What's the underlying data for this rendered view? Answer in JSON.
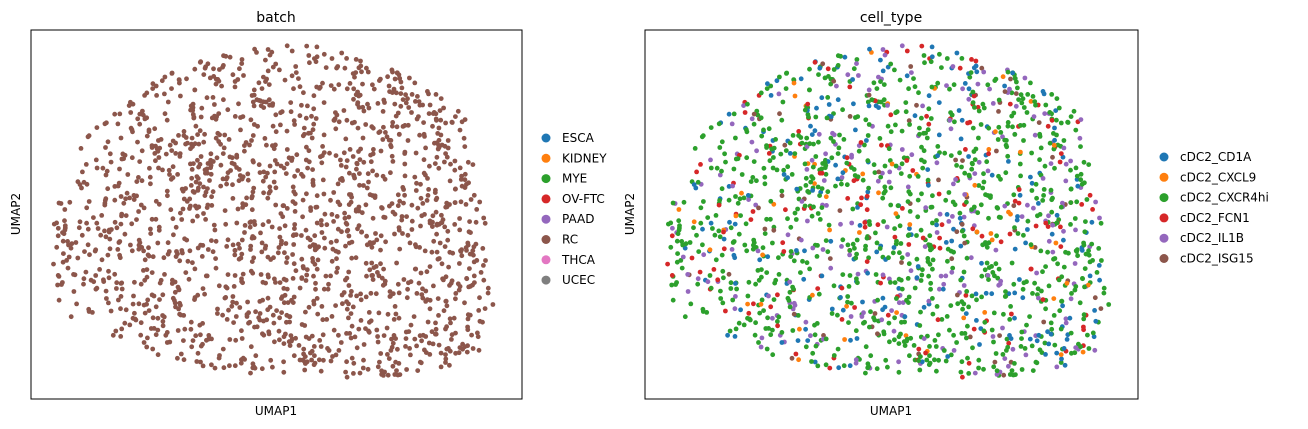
{
  "chart_data": [
    {
      "type": "scatter",
      "title": "batch",
      "xlabel": "UMAP1",
      "ylabel": "UMAP2",
      "grid": false,
      "legend_position": "right",
      "legend": [
        {
          "name": "ESCA",
          "color": "#1f77b4"
        },
        {
          "name": "KIDNEY",
          "color": "#ff7f0e"
        },
        {
          "name": "MYE",
          "color": "#2ca02c"
        },
        {
          "name": "OV-FTC",
          "color": "#d62728"
        },
        {
          "name": "PAAD",
          "color": "#9467bd"
        },
        {
          "name": "RC",
          "color": "#8c564b"
        },
        {
          "name": "THCA",
          "color": "#e377c2"
        },
        {
          "name": "UCEC",
          "color": "#7f7f7f"
        }
      ],
      "points": {
        "category_weights": {
          "RC": 1.0
        },
        "description": "~1600 cells, all colored by batch RC"
      }
    },
    {
      "type": "scatter",
      "title": "cell_type",
      "xlabel": "UMAP1",
      "ylabel": "UMAP2",
      "grid": false,
      "legend_position": "right",
      "legend": [
        {
          "name": "cDC2_CD1A",
          "color": "#1f77b4"
        },
        {
          "name": "cDC2_CXCL9",
          "color": "#ff7f0e"
        },
        {
          "name": "cDC2_CXCR4hi",
          "color": "#2ca02c"
        },
        {
          "name": "cDC2_FCN1",
          "color": "#d62728"
        },
        {
          "name": "cDC2_IL1B",
          "color": "#9467bd"
        },
        {
          "name": "cDC2_ISG15",
          "color": "#8c564b"
        }
      ],
      "points": {
        "category_weights": {
          "cDC2_CD1A": 0.13,
          "cDC2_CXCL9": 0.04,
          "cDC2_CXCR4hi": 0.55,
          "cDC2_FCN1": 0.1,
          "cDC2_IL1B": 0.14,
          "cDC2_ISG15": 0.04
        },
        "description": "same embedding as batch panel, colored by cell type"
      }
    }
  ]
}
